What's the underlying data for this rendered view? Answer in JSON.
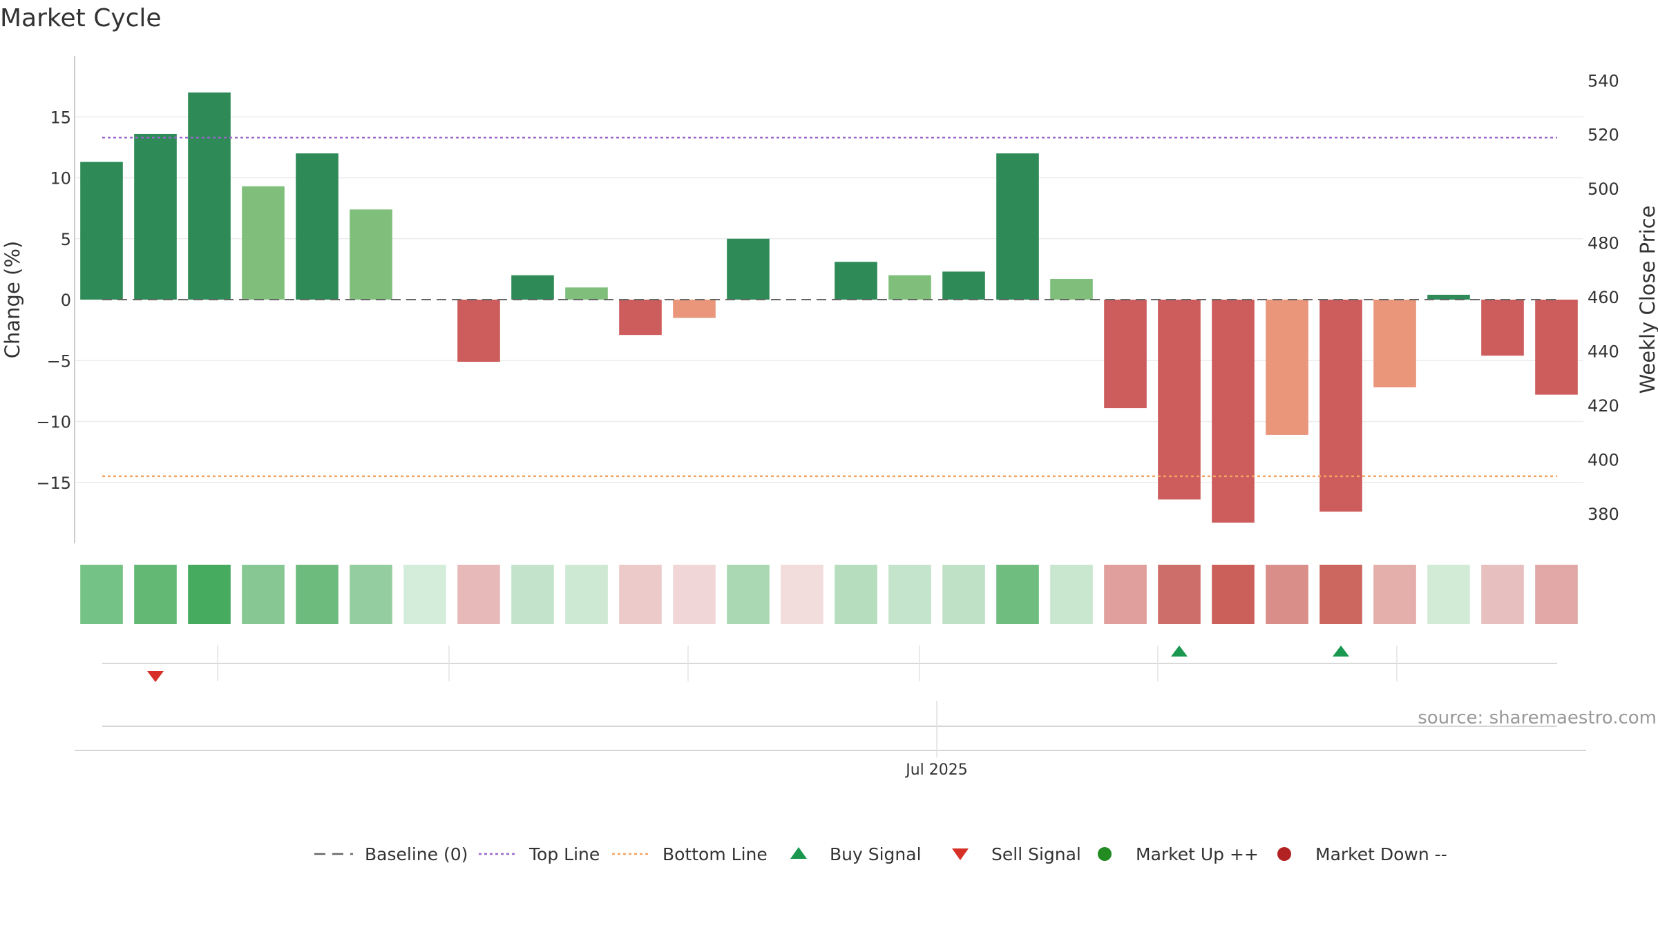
{
  "chart_data": {
    "type": "bar",
    "title": "Market Cycle",
    "ylabel": "Change (%)",
    "y2label": "Weekly Close Price",
    "ylim": [
      -20,
      20
    ],
    "y_ticks": [
      15,
      10,
      5,
      0,
      -5,
      -10,
      -15
    ],
    "y_tick_labels": [
      "15",
      "10",
      "5",
      "0",
      "−5",
      "−10",
      "−15"
    ],
    "y2lim": [
      369,
      549
    ],
    "y2_ticks": [
      540,
      520,
      500,
      480,
      460,
      440,
      420,
      400,
      380
    ],
    "x_tick_label": "Jul 2025",
    "x_tick_index": 15.5,
    "top_line": 13.3,
    "bottom_line": -14.5,
    "baseline": 0,
    "values": [
      11.3,
      13.6,
      17.0,
      9.3,
      12.0,
      7.4,
      0,
      -5.1,
      2.0,
      1.0,
      -2.9,
      -1.5,
      5.0,
      0,
      3.1,
      2.0,
      2.3,
      12.0,
      1.7,
      -8.9,
      -16.4,
      -18.3,
      -11.1,
      -17.4,
      -7.2,
      0.4,
      -4.6,
      -7.8
    ],
    "bar_colors": [
      "#2e8b57",
      "#2e8b57",
      "#2e8b57",
      "#7fbf7b",
      "#2e8b57",
      "#7fbf7b",
      "#ffffff",
      "#cd5c5c",
      "#2e8b57",
      "#7fbf7b",
      "#cd5c5c",
      "#e9967a",
      "#2e8b57",
      "#ffffff",
      "#2e8b57",
      "#7fbf7b",
      "#2e8b57",
      "#2e8b57",
      "#7fbf7b",
      "#cd5c5c",
      "#cd5c5c",
      "#cd5c5c",
      "#e9967a",
      "#cd5c5c",
      "#e9967a",
      "#2e8b57",
      "#cd5c5c",
      "#cd5c5c"
    ],
    "heat_colors": [
      "#74c285",
      "#63b874",
      "#46ab5e",
      "#86c793",
      "#6dbc7d",
      "#94cea0",
      "#d4ecda",
      "#e8b9b9",
      "#c3e4ca",
      "#cde8d3",
      "#edcaca",
      "#f0d6d6",
      "#a9d8b2",
      "#f2dcdc",
      "#b5ddbe",
      "#c4e4cb",
      "#bfe1c6",
      "#6fbd7f",
      "#c9e6cf",
      "#e09e9c",
      "#cd6e6a",
      "#cb605a",
      "#d98e8a",
      "#cc6760",
      "#e4aeab",
      "#d2ebd7",
      "#e8bfbf",
      "#e1a8a7"
    ],
    "buy_signals": [
      20,
      23
    ],
    "sell_signals": [
      1
    ],
    "source_text": "source: sharemaestro.com",
    "colors": {
      "top_line": "#9966cc",
      "bottom_line": "#f4a460",
      "baseline": "#666666",
      "buy": "#1a9850",
      "sell": "#d73027",
      "market_up": "#228b22",
      "market_down": "#b22222"
    },
    "legend": {
      "position": "bottom-center",
      "items": [
        {
          "label": "Baseline (0)",
          "icon": "dashed-line-icon"
        },
        {
          "label": "Top Line",
          "icon": "dotted-line-purple-icon"
        },
        {
          "label": "Bottom Line",
          "icon": "dotted-line-orange-icon"
        },
        {
          "label": "Buy Signal",
          "icon": "triangle-up-icon"
        },
        {
          "label": "Sell Signal",
          "icon": "triangle-down-icon"
        },
        {
          "label": "Market Up ++",
          "icon": "green-dot-icon"
        },
        {
          "label": "Market Down --",
          "icon": "red-dot-icon"
        }
      ]
    }
  }
}
